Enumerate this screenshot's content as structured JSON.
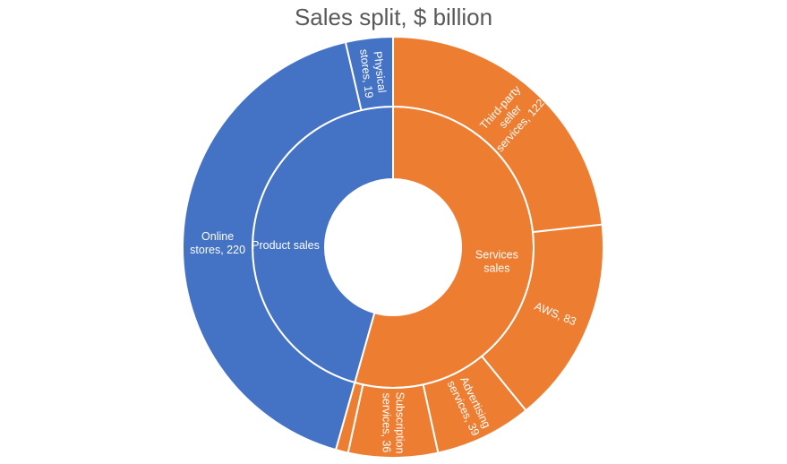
{
  "chart_data": {
    "type": "sunburst",
    "title": "Sales split, $ billion",
    "colors": {
      "product": "#4472C4",
      "services": "#ED7D31",
      "border": "#FFFFFF",
      "title": "#595959"
    },
    "groups": [
      {
        "name": "Product sales",
        "label": [
          "Product sales"
        ],
        "color": "#4472C4",
        "children": [
          {
            "name": "Physical stores",
            "value": 19,
            "label": [
              "Physical",
              "stores, 19"
            ]
          },
          {
            "name": "Online stores",
            "value": 220,
            "label": [
              "Online",
              "stores, 220"
            ]
          }
        ]
      },
      {
        "name": "Services sales",
        "label": [
          "Services",
          "sales"
        ],
        "color": "#ED7D31",
        "children": [
          {
            "name": "Other",
            "value": 5,
            "label": []
          },
          {
            "name": "Subscription services",
            "value": 36,
            "label": [
              "Subscription",
              "services, 36"
            ]
          },
          {
            "name": "Advertising services",
            "value": 39,
            "label": [
              "Advertising",
              "services, 39"
            ]
          },
          {
            "name": "AWS",
            "value": 83,
            "label": [
              "AWS, 83"
            ]
          },
          {
            "name": "Third-party seller services",
            "value": 122,
            "label": [
              "Third-party",
              "seller",
              "services, 122"
            ]
          }
        ]
      }
    ]
  }
}
